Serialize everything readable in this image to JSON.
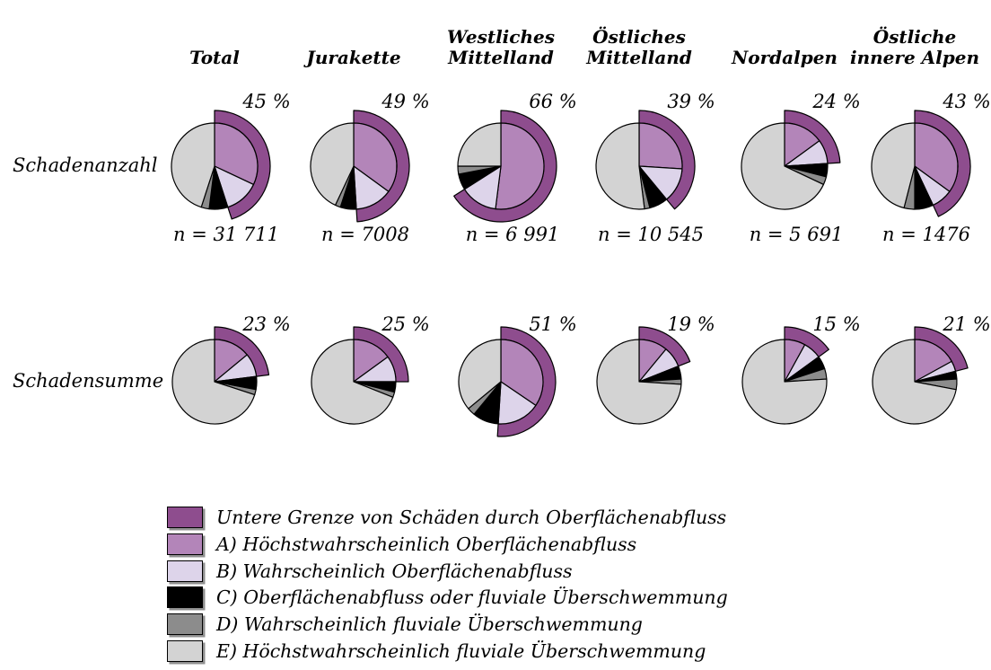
{
  "figure": {
    "row_labels": [
      "Schadenanzahl",
      "Schadensumme"
    ],
    "column_headers": [
      {
        "lines": [
          "Total"
        ]
      },
      {
        "lines": [
          "Jurakette"
        ]
      },
      {
        "lines": [
          "Westliches",
          "Mittelland"
        ]
      },
      {
        "lines": [
          "Östliches",
          "Mittelland"
        ]
      },
      {
        "lines": [
          "Nordalpen"
        ]
      },
      {
        "lines": [
          "Östliche",
          "innere Alpen"
        ]
      }
    ]
  },
  "colors": {
    "arc": "#8E4D8E",
    "A": "#B385B9",
    "B": "#DDD4EA",
    "C": "#000000",
    "D": "#8C8C8C",
    "E": "#D3D3D3",
    "stroke": "#000000",
    "background": "#FFFFFF"
  },
  "legend": [
    {
      "color_key": "arc",
      "label": "Untere Grenze von Schäden durch Oberflächenabfluss"
    },
    {
      "color_key": "A",
      "label": "A) Höchstwahrscheinlich Oberflächenabfluss"
    },
    {
      "color_key": "B",
      "label": "B) Wahrscheinlich Oberflächenabfluss"
    },
    {
      "color_key": "C",
      "label": "C) Oberflächenabfluss oder fluviale Überschwemmung"
    },
    {
      "color_key": "D",
      "label": "D) Wahrscheinlich fluviale Überschwemmung"
    },
    {
      "color_key": "E",
      "label": "E) Höchstwahrscheinlich fluviale Überschwemmung"
    }
  ],
  "chart_data": {
    "type": "pie",
    "layout": "2 rows (Schadenanzahl, Schadensumme) x 6 regions; each pie has an outer arc ring showing the lower-bound share of surface-runoff damage (= segments A + B)",
    "legend_position": "bottom",
    "segment_order": [
      "A",
      "B",
      "C",
      "D",
      "E"
    ],
    "segment_meaning": {
      "arc": "Untere Grenze von Schäden durch Oberflächenabfluss",
      "A": "Höchstwahrscheinlich Oberflächenabfluss",
      "B": "Wahrscheinlich Oberflächenabfluss",
      "C": "Oberflächenabfluss oder fluviale Überschwemmung",
      "D": "Wahrscheinlich fluviale Überschwemmung",
      "E": "Höchstwahrscheinlich fluviale Überschwemmung"
    },
    "rows": [
      {
        "label": "Schadenanzahl",
        "pies": [
          {
            "region": "Total",
            "outer_arc_pct": 45,
            "pct_label": "45 %",
            "n": 31711,
            "n_label": "n = 31 711",
            "segments": {
              "A": 32,
              "B": 13,
              "C": 7,
              "D": 3,
              "E": 45
            }
          },
          {
            "region": "Jurakette",
            "outer_arc_pct": 49,
            "pct_label": "49 %",
            "n": 7008,
            "n_label": "n = 7008",
            "segments": {
              "A": 35,
              "B": 14,
              "C": 6,
              "D": 2,
              "E": 43
            }
          },
          {
            "region": "Westliches Mittelland",
            "outer_arc_pct": 66,
            "pct_label": "66 %",
            "n": 6991,
            "n_label": "n = 6 991",
            "segments": {
              "A": 52,
              "B": 14,
              "C": 6,
              "D": 3,
              "E": 25
            }
          },
          {
            "region": "Östliches Mittelland",
            "outer_arc_pct": 39,
            "pct_label": "39 %",
            "n": 10545,
            "n_label": "n = 10 545",
            "segments": {
              "A": 26,
              "B": 13,
              "C": 7,
              "D": 2,
              "E": 52
            }
          },
          {
            "region": "Nordalpen",
            "outer_arc_pct": 24,
            "pct_label": "24 %",
            "n": 5691,
            "n_label": "n = 5 691",
            "segments": {
              "A": 15,
              "B": 9,
              "C": 5,
              "D": 3,
              "E": 68
            }
          },
          {
            "region": "Östliche innere Alpen",
            "outer_arc_pct": 43,
            "pct_label": "43 %",
            "n": 1476,
            "n_label": "n = 1476",
            "segments": {
              "A": 35,
              "B": 8,
              "C": 7,
              "D": 4,
              "E": 46
            }
          }
        ]
      },
      {
        "label": "Schadensumme",
        "pies": [
          {
            "region": "Total",
            "outer_arc_pct": 23,
            "pct_label": "23 %",
            "segments": {
              "A": 14,
              "B": 9,
              "C": 5,
              "D": 2,
              "E": 70
            }
          },
          {
            "region": "Jurakette",
            "outer_arc_pct": 25,
            "pct_label": "25 %",
            "segments": {
              "A": 15,
              "B": 10,
              "C": 4,
              "D": 2,
              "E": 69
            }
          },
          {
            "region": "Westliches Mittelland",
            "outer_arc_pct": 51,
            "pct_label": "51 %",
            "segments": {
              "A": 34.5,
              "B": 16.5,
              "C": 10,
              "D": 3,
              "E": 36
            }
          },
          {
            "region": "Östliches Mittelland",
            "outer_arc_pct": 19,
            "pct_label": "19 %",
            "segments": {
              "A": 11,
              "B": 8,
              "C": 5,
              "D": 2,
              "E": 74
            }
          },
          {
            "region": "Nordalpen",
            "outer_arc_pct": 15,
            "pct_label": "15 %",
            "segments": {
              "A": 8,
              "B": 7,
              "C": 5,
              "D": 4,
              "E": 76
            }
          },
          {
            "region": "Östliche innere Alpen",
            "outer_arc_pct": 21,
            "pct_label": "21 %",
            "segments": {
              "A": 17,
              "B": 4,
              "C": 3,
              "D": 4,
              "E": 72
            }
          }
        ]
      }
    ]
  }
}
